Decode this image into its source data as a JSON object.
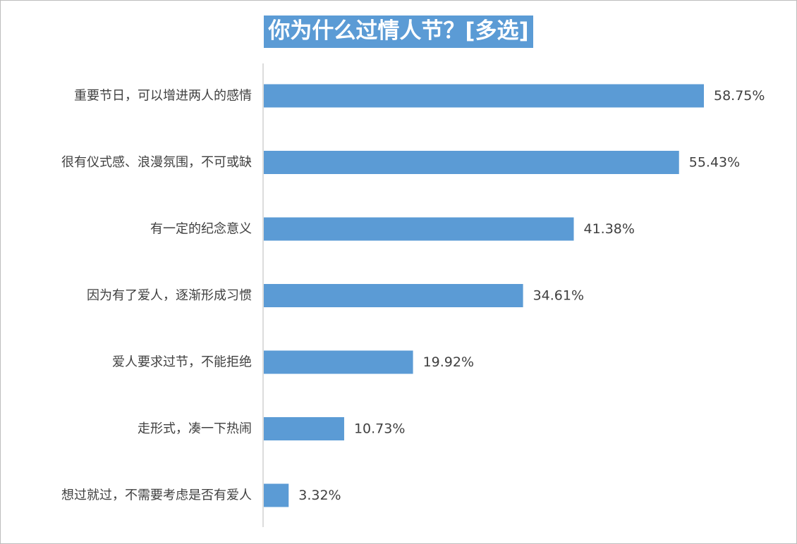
{
  "chart_data": {
    "type": "bar",
    "orientation": "horizontal",
    "title": "你为什么过情人节？[多选]",
    "categories": [
      "重要节日，可以增进两人的感情",
      "很有仪式感、浪漫氛围，不可或缺",
      "有一定的纪念意义",
      "因为有了爱人，逐渐形成习惯",
      "爱人要求过节，不能拒绝",
      "走形式，凑一下热闹",
      "想过就过，不需要考虑是否有爱人"
    ],
    "values": [
      58.75,
      55.43,
      41.38,
      34.61,
      19.92,
      10.73,
      3.32
    ],
    "value_labels": [
      "58.75%",
      "55.43%",
      "41.38%",
      "34.61%",
      "19.92%",
      "10.73%",
      "3.32%"
    ],
    "unit": "%",
    "xlim": [
      0,
      60
    ],
    "grid": false,
    "legend": "none",
    "bar_color": "#5b9bd5",
    "title_bg_color": "#5b9bd5"
  }
}
